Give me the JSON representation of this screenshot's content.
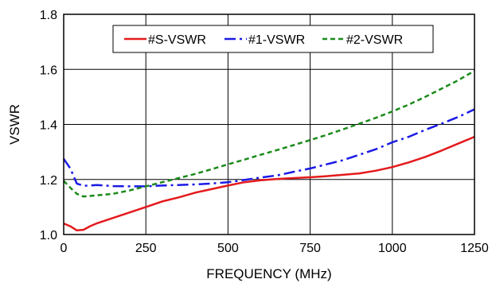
{
  "chart_data": {
    "type": "line",
    "title": "",
    "xlabel": "FREQUENCY (MHz)",
    "ylabel": "VSWR",
    "xlim": [
      0,
      1250
    ],
    "ylim": [
      1.0,
      1.8
    ],
    "x_ticks": [
      "0",
      "250",
      "500",
      "750",
      "1000",
      "1250"
    ],
    "y_ticks": [
      "1.0",
      "1.2",
      "1.4",
      "1.6",
      "1.8"
    ],
    "grid": true,
    "legend_position": "top-center",
    "series": [
      {
        "name": "#S-VSWR",
        "color": "#e41a1c",
        "style": "solid",
        "points": [
          [
            0,
            1.04
          ],
          [
            20,
            1.03
          ],
          [
            40,
            1.015
          ],
          [
            60,
            1.017
          ],
          [
            80,
            1.03
          ],
          [
            100,
            1.04
          ],
          [
            150,
            1.06
          ],
          [
            200,
            1.08
          ],
          [
            250,
            1.1
          ],
          [
            300,
            1.12
          ],
          [
            350,
            1.135
          ],
          [
            400,
            1.152
          ],
          [
            450,
            1.165
          ],
          [
            500,
            1.178
          ],
          [
            550,
            1.19
          ],
          [
            600,
            1.197
          ],
          [
            650,
            1.202
          ],
          [
            700,
            1.205
          ],
          [
            750,
            1.208
          ],
          [
            800,
            1.212
          ],
          [
            850,
            1.217
          ],
          [
            900,
            1.222
          ],
          [
            950,
            1.232
          ],
          [
            1000,
            1.245
          ],
          [
            1050,
            1.262
          ],
          [
            1100,
            1.282
          ],
          [
            1150,
            1.305
          ],
          [
            1200,
            1.33
          ],
          [
            1250,
            1.355
          ]
        ]
      },
      {
        "name": "#1-VSWR",
        "color": "#1a1ae6",
        "style": "dash-dot",
        "points": [
          [
            0,
            1.275
          ],
          [
            20,
            1.24
          ],
          [
            40,
            1.185
          ],
          [
            60,
            1.177
          ],
          [
            80,
            1.178
          ],
          [
            100,
            1.18
          ],
          [
            150,
            1.176
          ],
          [
            200,
            1.175
          ],
          [
            250,
            1.175
          ],
          [
            300,
            1.178
          ],
          [
            350,
            1.18
          ],
          [
            400,
            1.182
          ],
          [
            450,
            1.185
          ],
          [
            500,
            1.19
          ],
          [
            550,
            1.198
          ],
          [
            600,
            1.207
          ],
          [
            650,
            1.215
          ],
          [
            700,
            1.228
          ],
          [
            750,
            1.24
          ],
          [
            800,
            1.255
          ],
          [
            850,
            1.27
          ],
          [
            900,
            1.29
          ],
          [
            950,
            1.31
          ],
          [
            1000,
            1.335
          ],
          [
            1050,
            1.355
          ],
          [
            1100,
            1.38
          ],
          [
            1150,
            1.403
          ],
          [
            1200,
            1.427
          ],
          [
            1250,
            1.455
          ]
        ]
      },
      {
        "name": "#2-VSWR",
        "color": "#1a8a1a",
        "style": "dashed",
        "points": [
          [
            0,
            1.195
          ],
          [
            20,
            1.17
          ],
          [
            40,
            1.148
          ],
          [
            60,
            1.138
          ],
          [
            80,
            1.14
          ],
          [
            100,
            1.142
          ],
          [
            150,
            1.148
          ],
          [
            200,
            1.16
          ],
          [
            250,
            1.175
          ],
          [
            300,
            1.19
          ],
          [
            350,
            1.205
          ],
          [
            400,
            1.22
          ],
          [
            450,
            1.237
          ],
          [
            500,
            1.255
          ],
          [
            550,
            1.272
          ],
          [
            600,
            1.29
          ],
          [
            650,
            1.307
          ],
          [
            700,
            1.325
          ],
          [
            750,
            1.343
          ],
          [
            800,
            1.362
          ],
          [
            850,
            1.382
          ],
          [
            900,
            1.403
          ],
          [
            950,
            1.424
          ],
          [
            1000,
            1.447
          ],
          [
            1050,
            1.472
          ],
          [
            1100,
            1.5
          ],
          [
            1150,
            1.53
          ],
          [
            1200,
            1.56
          ],
          [
            1250,
            1.595
          ]
        ]
      }
    ]
  }
}
